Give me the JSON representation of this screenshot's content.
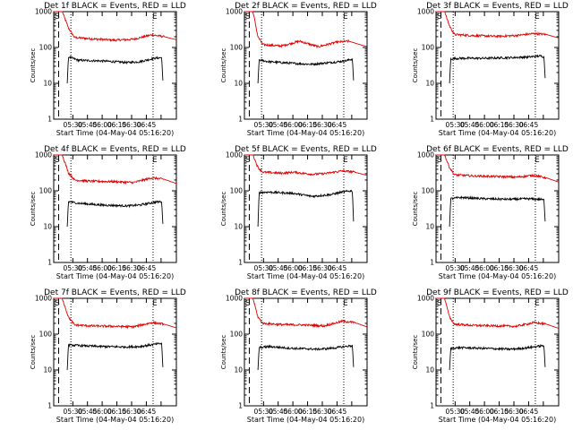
{
  "chart_data": [
    {
      "type": "line",
      "title": "Det 1f BLACK = Events, RED = LLD",
      "xlabel": "Start Time (04-May-04 05:16:20)",
      "ylabel": "Counts/sec",
      "yscale": "log",
      "ylim": [
        1,
        1000
      ],
      "ytick_labels": [
        "1",
        "10",
        "100",
        "1000"
      ],
      "xtick_labels": [
        "05:30",
        "05:45",
        "06:00",
        "06:15",
        "06:30",
        "06:45"
      ],
      "marker_s": "S",
      "marker_e": "E",
      "series": [
        {
          "color": "#e00000",
          "anchors": [
            [
              0,
              1000
            ],
            [
              0.07,
              1000
            ],
            [
              0.12,
              350
            ],
            [
              0.17,
              190
            ],
            [
              0.3,
              175
            ],
            [
              0.5,
              160
            ],
            [
              0.65,
              170
            ],
            [
              0.8,
              225
            ],
            [
              0.9,
              200
            ],
            [
              1,
              165
            ]
          ]
        },
        {
          "color": "#000000",
          "anchors": [
            [
              0.11,
              10
            ],
            [
              0.12,
              55
            ],
            [
              0.2,
              44
            ],
            [
              0.4,
              42
            ],
            [
              0.6,
              38
            ],
            [
              0.7,
              40
            ],
            [
              0.82,
              50
            ],
            [
              0.88,
              52
            ],
            [
              0.89,
              12
            ]
          ]
        }
      ]
    },
    {
      "type": "line",
      "title": "Det 2f BLACK = Events, RED = LLD",
      "xlabel": "Start Time (04-May-04 05:16:20)",
      "ylabel": "Counts/sec",
      "yscale": "log",
      "ylim": [
        1,
        1000
      ],
      "ytick_labels": [
        "1",
        "10",
        "100",
        "1000"
      ],
      "xtick_labels": [
        "05:30",
        "05:45",
        "06:00",
        "06:15",
        "06:30",
        "06:45"
      ],
      "marker_s": "S",
      "marker_e": "E",
      "series": [
        {
          "color": "#e00000",
          "anchors": [
            [
              0,
              1000
            ],
            [
              0.07,
              1000
            ],
            [
              0.11,
              200
            ],
            [
              0.15,
              120
            ],
            [
              0.3,
              110
            ],
            [
              0.45,
              150
            ],
            [
              0.6,
              105
            ],
            [
              0.75,
              140
            ],
            [
              0.85,
              150
            ],
            [
              1,
              105
            ]
          ]
        },
        {
          "color": "#000000",
          "anchors": [
            [
              0.11,
              10
            ],
            [
              0.12,
              45
            ],
            [
              0.2,
              40
            ],
            [
              0.4,
              36
            ],
            [
              0.55,
              34
            ],
            [
              0.7,
              38
            ],
            [
              0.82,
              42
            ],
            [
              0.88,
              48
            ],
            [
              0.89,
              12
            ]
          ]
        }
      ]
    },
    {
      "type": "line",
      "title": "Det 3f BLACK = Events, RED = LLD",
      "xlabel": "Start Time (04-May-04 05:16:20)",
      "ylabel": "Counts/sec",
      "yscale": "log",
      "ylim": [
        1,
        1000
      ],
      "ytick_labels": [
        "1",
        "10",
        "100",
        "1000"
      ],
      "xtick_labels": [
        "05:30",
        "05:45",
        "06:00",
        "06:15",
        "06:30",
        "06:45"
      ],
      "marker_s": "S",
      "marker_e": "E",
      "series": [
        {
          "color": "#e00000",
          "anchors": [
            [
              0,
              1000
            ],
            [
              0.07,
              1000
            ],
            [
              0.11,
              400
            ],
            [
              0.15,
              230
            ],
            [
              0.3,
              215
            ],
            [
              0.5,
              205
            ],
            [
              0.65,
              215
            ],
            [
              0.8,
              245
            ],
            [
              0.9,
              230
            ],
            [
              1,
              185
            ]
          ]
        },
        {
          "color": "#000000",
          "anchors": [
            [
              0.11,
              10
            ],
            [
              0.12,
              48
            ],
            [
              0.2,
              50
            ],
            [
              0.4,
              50
            ],
            [
              0.6,
              52
            ],
            [
              0.75,
              54
            ],
            [
              0.85,
              58
            ],
            [
              0.88,
              55
            ],
            [
              0.89,
              14
            ]
          ]
        }
      ]
    },
    {
      "type": "line",
      "title": "Det 4f BLACK = Events, RED = LLD",
      "xlabel": "Start Time (04-May-04 05:16:20)",
      "ylabel": "Counts/sec",
      "yscale": "log",
      "ylim": [
        1,
        1000
      ],
      "ytick_labels": [
        "1",
        "10",
        "100",
        "1000"
      ],
      "xtick_labels": [
        "05:30",
        "05:45",
        "06:00",
        "06:15",
        "06:30",
        "06:45"
      ],
      "marker_s": "S",
      "marker_e": "E",
      "series": [
        {
          "color": "#e00000",
          "anchors": [
            [
              0,
              1000
            ],
            [
              0.07,
              1000
            ],
            [
              0.12,
              320
            ],
            [
              0.17,
              200
            ],
            [
              0.3,
              185
            ],
            [
              0.5,
              180
            ],
            [
              0.65,
              170
            ],
            [
              0.8,
              230
            ],
            [
              0.9,
              210
            ],
            [
              1,
              160
            ]
          ]
        },
        {
          "color": "#000000",
          "anchors": [
            [
              0.11,
              10
            ],
            [
              0.12,
              50
            ],
            [
              0.2,
              45
            ],
            [
              0.4,
              40
            ],
            [
              0.6,
              38
            ],
            [
              0.7,
              40
            ],
            [
              0.82,
              48
            ],
            [
              0.88,
              50
            ],
            [
              0.89,
              12
            ]
          ]
        }
      ]
    },
    {
      "type": "line",
      "title": "Det 5f BLACK = Events, RED = LLD",
      "xlabel": "Start Time (04-May-04 05:16:20)",
      "ylabel": "Counts/sec",
      "yscale": "log",
      "ylim": [
        1,
        1000
      ],
      "ytick_labels": [
        "1",
        "10",
        "100",
        "1000"
      ],
      "xtick_labels": [
        "05:30",
        "05:45",
        "06:00",
        "06:15",
        "06:30",
        "06:45"
      ],
      "marker_s": "S",
      "marker_e": "E",
      "series": [
        {
          "color": "#e00000",
          "anchors": [
            [
              0,
              1000
            ],
            [
              0.07,
              1000
            ],
            [
              0.11,
              450
            ],
            [
              0.15,
              330
            ],
            [
              0.3,
              310
            ],
            [
              0.4,
              330
            ],
            [
              0.55,
              290
            ],
            [
              0.65,
              300
            ],
            [
              0.8,
              360
            ],
            [
              0.9,
              330
            ],
            [
              1,
              270
            ]
          ]
        },
        {
          "color": "#000000",
          "anchors": [
            [
              0.11,
              10
            ],
            [
              0.12,
              90
            ],
            [
              0.2,
              92
            ],
            [
              0.4,
              85
            ],
            [
              0.55,
              70
            ],
            [
              0.7,
              78
            ],
            [
              0.82,
              95
            ],
            [
              0.88,
              100
            ],
            [
              0.89,
              14
            ]
          ]
        }
      ]
    },
    {
      "type": "line",
      "title": "Det 6f BLACK = Events, RED = LLD",
      "xlabel": "Start Time (04-May-04 05:16:20)",
      "ylabel": "Counts/sec",
      "yscale": "log",
      "ylim": [
        1,
        1000
      ],
      "ytick_labels": [
        "1",
        "10",
        "100",
        "1000"
      ],
      "xtick_labels": [
        "05:30",
        "05:45",
        "06:00",
        "06:15",
        "06:30",
        "06:45"
      ],
      "marker_s": "S",
      "marker_e": "E",
      "series": [
        {
          "color": "#e00000",
          "anchors": [
            [
              0,
              1000
            ],
            [
              0.07,
              1000
            ],
            [
              0.11,
              450
            ],
            [
              0.15,
              280
            ],
            [
              0.3,
              260
            ],
            [
              0.5,
              250
            ],
            [
              0.65,
              240
            ],
            [
              0.8,
              270
            ],
            [
              0.9,
              230
            ],
            [
              1,
              175
            ]
          ]
        },
        {
          "color": "#000000",
          "anchors": [
            [
              0.11,
              10
            ],
            [
              0.12,
              60
            ],
            [
              0.2,
              65
            ],
            [
              0.4,
              60
            ],
            [
              0.6,
              58
            ],
            [
              0.75,
              60
            ],
            [
              0.85,
              58
            ],
            [
              0.88,
              55
            ],
            [
              0.89,
              14
            ]
          ]
        }
      ]
    },
    {
      "type": "line",
      "title": "Det 7f BLACK = Events, RED = LLD",
      "xlabel": "Start Time (04-May-04 05:16:20)",
      "ylabel": "Counts/sec",
      "yscale": "log",
      "ylim": [
        1,
        1000
      ],
      "ytick_labels": [
        "1",
        "10",
        "100",
        "1000"
      ],
      "xtick_labels": [
        "05:30",
        "05:45",
        "06:00",
        "06:15",
        "06:30",
        "06:45"
      ],
      "marker_s": "S",
      "marker_e": "E",
      "series": [
        {
          "color": "#e00000",
          "anchors": [
            [
              0,
              1000
            ],
            [
              0.07,
              1000
            ],
            [
              0.12,
              300
            ],
            [
              0.17,
              180
            ],
            [
              0.3,
              170
            ],
            [
              0.5,
              165
            ],
            [
              0.65,
              160
            ],
            [
              0.8,
              210
            ],
            [
              0.9,
              190
            ],
            [
              1,
              150
            ]
          ]
        },
        {
          "color": "#000000",
          "anchors": [
            [
              0.11,
              10
            ],
            [
              0.12,
              50
            ],
            [
              0.2,
              48
            ],
            [
              0.4,
              45
            ],
            [
              0.6,
              44
            ],
            [
              0.7,
              45
            ],
            [
              0.82,
              52
            ],
            [
              0.88,
              55
            ],
            [
              0.89,
              12
            ]
          ]
        }
      ]
    },
    {
      "type": "line",
      "title": "Det 8f BLACK = Events, RED = LLD",
      "xlabel": "Start Time (04-May-04 05:16:20)",
      "ylabel": "Counts/sec",
      "yscale": "log",
      "ylim": [
        1,
        1000
      ],
      "ytick_labels": [
        "1",
        "10",
        "100",
        "1000"
      ],
      "xtick_labels": [
        "05:30",
        "05:45",
        "06:00",
        "06:15",
        "06:30",
        "06:45"
      ],
      "marker_s": "S",
      "marker_e": "E",
      "series": [
        {
          "color": "#e00000",
          "anchors": [
            [
              0,
              1000
            ],
            [
              0.07,
              1000
            ],
            [
              0.11,
              300
            ],
            [
              0.15,
              200
            ],
            [
              0.3,
              185
            ],
            [
              0.5,
              180
            ],
            [
              0.65,
              170
            ],
            [
              0.8,
              230
            ],
            [
              0.9,
              210
            ],
            [
              1,
              160
            ]
          ]
        },
        {
          "color": "#000000",
          "anchors": [
            [
              0.11,
              10
            ],
            [
              0.12,
              42
            ],
            [
              0.2,
              45
            ],
            [
              0.4,
              40
            ],
            [
              0.6,
              38
            ],
            [
              0.7,
              40
            ],
            [
              0.82,
              45
            ],
            [
              0.88,
              48
            ],
            [
              0.89,
              12
            ]
          ]
        }
      ]
    },
    {
      "type": "line",
      "title": "Det 9f BLACK = Events, RED = LLD",
      "xlabel": "Start Time (04-May-04 05:16:20)",
      "ylabel": "Counts/sec",
      "yscale": "log",
      "ylim": [
        1,
        1000
      ],
      "ytick_labels": [
        "1",
        "10",
        "100",
        "1000"
      ],
      "xtick_labels": [
        "05:30",
        "05:45",
        "06:00",
        "06:15",
        "06:30",
        "06:45"
      ],
      "marker_s": "S",
      "marker_e": "E",
      "series": [
        {
          "color": "#e00000",
          "anchors": [
            [
              0,
              1000
            ],
            [
              0.07,
              1000
            ],
            [
              0.11,
              300
            ],
            [
              0.15,
              190
            ],
            [
              0.3,
              175
            ],
            [
              0.5,
              170
            ],
            [
              0.65,
              165
            ],
            [
              0.8,
              210
            ],
            [
              0.9,
              190
            ],
            [
              1,
              145
            ]
          ]
        },
        {
          "color": "#000000",
          "anchors": [
            [
              0.11,
              10
            ],
            [
              0.12,
              40
            ],
            [
              0.2,
              42
            ],
            [
              0.4,
              40
            ],
            [
              0.6,
              38
            ],
            [
              0.7,
              40
            ],
            [
              0.82,
              45
            ],
            [
              0.88,
              48
            ],
            [
              0.89,
              12
            ]
          ]
        }
      ]
    }
  ]
}
